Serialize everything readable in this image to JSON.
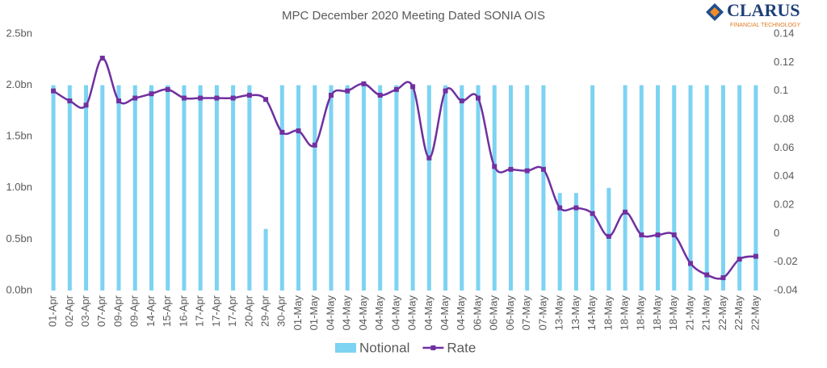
{
  "logo": {
    "name": "CLARUS",
    "tagline": "FINANCIAL TECHNOLOGY"
  },
  "chart_data": {
    "type": "bar-line",
    "title": "MPC December 2020 Meeting Dated SONIA OIS",
    "categories": [
      "01-Apr",
      "02-Apr",
      "03-Apr",
      "07-Apr",
      "09-Apr",
      "09-Apr",
      "14-Apr",
      "15-Apr",
      "16-Apr",
      "17-Apr",
      "17-Apr",
      "17-Apr",
      "20-Apr",
      "29-Apr",
      "30-Apr",
      "01-May",
      "01-May",
      "04-May",
      "04-May",
      "04-May",
      "04-May",
      "04-May",
      "04-May",
      "04-May",
      "04-May",
      "04-May",
      "06-May",
      "06-May",
      "06-May",
      "07-May",
      "07-May",
      "13-May",
      "13-May",
      "14-May",
      "18-May",
      "18-May",
      "18-May",
      "18-May",
      "18-May",
      "21-May",
      "21-May",
      "22-May",
      "22-May",
      "22-May"
    ],
    "series": [
      {
        "name": "Notional",
        "type": "bar",
        "color": "#7dd3f2",
        "values": [
          2.0,
          2.0,
          2.0,
          2.0,
          2.0,
          2.0,
          2.0,
          2.0,
          2.0,
          2.0,
          2.0,
          2.0,
          2.0,
          0.6,
          2.0,
          2.0,
          2.0,
          2.0,
          2.0,
          2.0,
          2.0,
          2.0,
          2.0,
          2.0,
          2.0,
          2.0,
          2.0,
          2.0,
          2.0,
          2.0,
          2.0,
          0.95,
          0.95,
          2.0,
          1.0,
          2.0,
          2.0,
          2.0,
          2.0,
          2.0,
          2.0,
          2.0,
          2.0,
          2.0
        ]
      },
      {
        "name": "Rate",
        "type": "line",
        "axis": "y2",
        "color": "#7030a0",
        "values": [
          0.1,
          0.093,
          0.09,
          0.123,
          0.093,
          0.095,
          0.098,
          0.101,
          0.095,
          0.095,
          0.095,
          0.095,
          0.097,
          0.094,
          0.071,
          0.072,
          0.062,
          0.097,
          0.1,
          0.105,
          0.097,
          0.101,
          0.103,
          0.053,
          0.1,
          0.093,
          0.095,
          0.047,
          0.045,
          0.044,
          0.045,
          0.018,
          0.018,
          0.014,
          -0.002,
          0.015,
          -0.001,
          -0.001,
          -0.001,
          -0.021,
          -0.029,
          -0.031,
          -0.018,
          -0.016
        ]
      }
    ],
    "ylim": [
      0,
      2.5
    ],
    "yticks": [
      {
        "value": 0,
        "label": "0.0bn"
      },
      {
        "value": 0.5,
        "label": "0.5bn"
      },
      {
        "value": 1.0,
        "label": "1.0bn"
      },
      {
        "value": 1.5,
        "label": "1.5bn"
      },
      {
        "value": 2.0,
        "label": "2.0bn"
      },
      {
        "value": 2.5,
        "label": "2.5bn"
      }
    ],
    "y2lim": [
      -0.04,
      0.14
    ],
    "y2ticks": [
      -0.04,
      -0.02,
      0,
      0.02,
      0.04,
      0.06,
      0.08,
      0.1,
      0.12,
      0.14
    ],
    "legend": "bottom",
    "grid": false
  }
}
